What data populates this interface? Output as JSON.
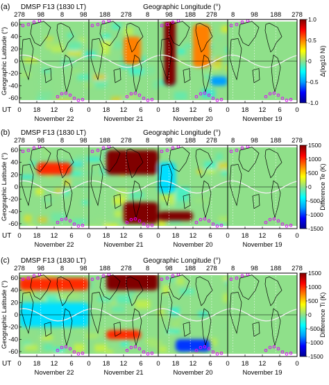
{
  "colors": {
    "background": "#ffffff",
    "map_fill": "#8fe08a",
    "map_grid": "#ffffff",
    "map_center_line": "#000000",
    "gap_band": "#ffffff",
    "magnetic_equator": "#f0f0f0",
    "continent_outline": "#000000",
    "aurora_marker": "#e000ff",
    "colormap_jet": [
      "#00008f",
      "#0000ff",
      "#00a0ff",
      "#00ffff",
      "#8fe08a",
      "#ffff00",
      "#ff8000",
      "#ff0000",
      "#800000"
    ]
  },
  "chart_data": [
    {
      "panel_label": "(a)",
      "type": "heatmap",
      "title": "DMSP F13 (1830 LT)",
      "top_axis_label": "Geographic Longitude (°)",
      "top_ticks": [
        "278",
        "98",
        "8",
        "98",
        "188",
        "278",
        "8",
        "98",
        "188",
        "278",
        "8",
        "98",
        "188",
        "278"
      ],
      "ylabel": "Geographic Latitude (°)",
      "yticks": [
        "60",
        "40",
        "20",
        "0",
        "-20",
        "-40",
        "-60"
      ],
      "ylim": [
        -68,
        68
      ],
      "ut_label": "UT",
      "ut_ticks": [
        "0",
        "18",
        "12",
        "6",
        "0",
        "18",
        "12",
        "6",
        "0",
        "18",
        "12",
        "6",
        "0",
        "18",
        "12",
        "6",
        "0"
      ],
      "days": [
        "November 22",
        "November 21",
        "November 20",
        "November 19"
      ],
      "colorbar_label": "Δ(log10 Ni)",
      "colorbar_ticks": [
        "1.0",
        "0.5",
        "0",
        "-0.5",
        "-1.0"
      ],
      "colorbar_range": [
        -1.0,
        1.0
      ],
      "features": [
        {
          "day": "November 20",
          "ut_range": [
            18,
            22
          ],
          "lat_range": [
            -40,
            68
          ],
          "value": 1.0
        },
        {
          "day": "November 20",
          "ut_range": [
            6,
            12
          ],
          "lat_range": [
            -10,
            60
          ],
          "value": 0.5
        },
        {
          "day": "November 21",
          "ut_range": [
            6,
            12
          ],
          "lat_range": [
            -5,
            40
          ],
          "value": 0.5
        },
        {
          "day": "November 20",
          "ut_range": [
            0,
            6
          ],
          "lat_range": [
            -40,
            -25
          ],
          "value": -0.5
        }
      ]
    },
    {
      "panel_label": "(b)",
      "type": "heatmap",
      "title": "DMSP F13 (1830 LT)",
      "top_axis_label": "Geographic Longitude (°)",
      "top_ticks": [
        "278",
        "98",
        "8",
        "98",
        "188",
        "278",
        "8",
        "98",
        "188",
        "278",
        "8",
        "98",
        "188",
        "278"
      ],
      "ylabel": "Geographic Latitude (°)",
      "yticks": [
        "60",
        "40",
        "20",
        "0",
        "-20",
        "-40",
        "-60"
      ],
      "ylim": [
        -68,
        68
      ],
      "ut_label": "UT",
      "ut_ticks": [
        "0",
        "18",
        "12",
        "6",
        "0",
        "18",
        "12",
        "6",
        "0",
        "18",
        "12",
        "6",
        "0",
        "18",
        "12",
        "6",
        "0"
      ],
      "days": [
        "November 22",
        "November 21",
        "November 20",
        "November 19"
      ],
      "colorbar_label": "Difference Te (K)",
      "colorbar_ticks": [
        "1500",
        "1000",
        "500",
        "0",
        "-500",
        "-1000",
        "-1500"
      ],
      "colorbar_range": [
        -1500,
        1500
      ],
      "features": [
        {
          "day": "November 21",
          "ut_range": [
            0,
            18
          ],
          "lat_range": [
            20,
            60
          ],
          "value": 1500
        },
        {
          "day": "November 21",
          "ut_range": [
            0,
            12
          ],
          "lat_range": [
            -60,
            -25
          ],
          "value": 1500
        },
        {
          "day": "November 22",
          "ut_range": [
            6,
            18
          ],
          "lat_range": [
            20,
            40
          ],
          "value": 1000
        },
        {
          "day": "November 20",
          "ut_range": [
            12,
            24
          ],
          "lat_range": [
            -55,
            -40
          ],
          "value": 1500
        },
        {
          "day": "November 20",
          "ut_range": [
            18,
            24
          ],
          "lat_range": [
            -10,
            40
          ],
          "value": -500
        }
      ]
    },
    {
      "panel_label": "(c)",
      "type": "heatmap",
      "title": "DMSP F13 (1830 LT)",
      "top_axis_label": "Geographic Longitude (°)",
      "top_ticks": [
        "278",
        "98",
        "8",
        "98",
        "188",
        "278",
        "8",
        "98",
        "188",
        "278",
        "8",
        "98",
        "188",
        "278"
      ],
      "ylabel": "Geographic Latitude (°)",
      "yticks": [
        "60",
        "40",
        "20",
        "0",
        "-20",
        "-40",
        "-60"
      ],
      "ylim": [
        -68,
        68
      ],
      "ut_label": "UT",
      "ut_ticks": [
        "0",
        "18",
        "12",
        "6",
        "0",
        "18",
        "12",
        "6",
        "0",
        "18",
        "12",
        "6",
        "0",
        "18",
        "12",
        "6",
        "0"
      ],
      "days": [
        "November 22",
        "November 21",
        "November 20",
        "November 19"
      ],
      "colorbar_label": "Difference Ti (K)",
      "colorbar_ticks": [
        "1500",
        "1000",
        "500",
        "0",
        "-500",
        "-1000",
        "-1500"
      ],
      "colorbar_range": [
        -1500,
        1500
      ],
      "features": [
        {
          "day": "November 21",
          "ut_range": [
            0,
            18
          ],
          "lat_range": [
            40,
            68
          ],
          "value": 1500
        },
        {
          "day": "November 22",
          "ut_range": [
            0,
            24
          ],
          "lat_range": [
            40,
            60
          ],
          "value": 1000
        },
        {
          "day": "November 21",
          "ut_range": [
            6,
            18
          ],
          "lat_range": [
            -40,
            -25
          ],
          "value": 1000
        },
        {
          "day": "November 22",
          "ut_range": [
            0,
            24
          ],
          "lat_range": [
            -20,
            20
          ],
          "value": -500
        },
        {
          "day": "November 20",
          "ut_range": [
            6,
            18
          ],
          "lat_range": [
            -60,
            -40
          ],
          "value": -1000
        }
      ]
    }
  ]
}
